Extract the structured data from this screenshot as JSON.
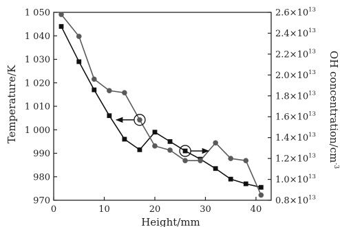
{
  "chart_data": {
    "type": "line",
    "xlabel": "Height/mm",
    "ylabel_left": "Temperature/K",
    "ylabel_right_main": "OH concentration/cm",
    "ylabel_right_sup": "-3",
    "xlim": [
      0,
      43
    ],
    "ylim_left": [
      970,
      1050
    ],
    "ylim_right": [
      0.8,
      2.6
    ],
    "x_ticks": [
      0,
      10,
      20,
      30,
      40
    ],
    "x_tick_labels": [
      "0",
      "10",
      "20",
      "30",
      "40"
    ],
    "left_ticks": [
      970,
      980,
      990,
      1000,
      1010,
      1020,
      1030,
      1040,
      1050
    ],
    "left_tick_labels": [
      "970",
      "980",
      "990",
      "1 000",
      "1 010",
      "1 020",
      "1 030",
      "1 040",
      "1 050"
    ],
    "right_ticks": [
      0.8,
      1.0,
      1.2,
      1.4,
      1.6,
      1.8,
      2.0,
      2.2,
      2.4,
      2.6
    ],
    "right_tick_mantissa": [
      "0.8×10",
      "1.0×10",
      "1.2×10",
      "1.4×10",
      "1.6×10",
      "1.8×10",
      "2.0×10",
      "2.2×10",
      "2.4×10",
      "2.6×10"
    ],
    "right_tick_exp": "13",
    "series": [
      {
        "axis": "left",
        "marker": "square",
        "x": [
          1.5,
          5,
          8,
          11,
          14,
          17,
          20,
          23,
          26,
          29,
          32,
          35,
          38,
          41
        ],
        "y": [
          1044,
          1029,
          1017,
          1006,
          996,
          991.5,
          999,
          995,
          991,
          987.5,
          983.5,
          979,
          977,
          975.5
        ]
      },
      {
        "axis": "right",
        "marker": "circle",
        "x": [
          1.5,
          5,
          8,
          11,
          14,
          17,
          20,
          23,
          26,
          29,
          32,
          35,
          38,
          41
        ],
        "y": [
          2.58,
          2.37,
          1.96,
          1.85,
          1.83,
          1.57,
          1.32,
          1.28,
          1.18,
          1.18,
          1.35,
          1.2,
          1.18,
          0.85
        ]
      }
    ],
    "annotations": [
      {
        "type": "circle-arrow",
        "series": 1,
        "x": 17,
        "direction": "left"
      },
      {
        "type": "circle-arrow",
        "series": 0,
        "x": 26,
        "direction": "right"
      }
    ],
    "colors": {
      "square_series": "#111111",
      "circle_series": "#5a5a5a",
      "axis": "#222222"
    }
  }
}
